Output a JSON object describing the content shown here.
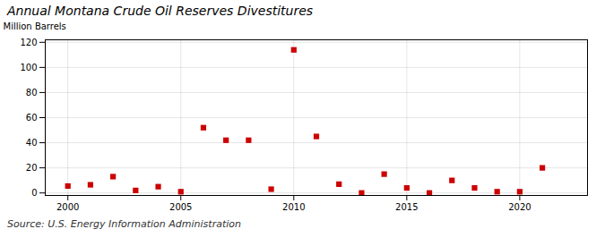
{
  "chart_data": {
    "type": "scatter",
    "title": "Annual Montana Crude Oil Reserves Divestitures",
    "ylabel": "Million Barrels",
    "annotations": [
      "Source: U.S. Energy Information Administration"
    ],
    "x": [
      2000,
      2001,
      2002,
      2003,
      2004,
      2005,
      2006,
      2007,
      2008,
      2009,
      2010,
      2011,
      2012,
      2013,
      2014,
      2015,
      2016,
      2017,
      2018,
      2019,
      2020,
      2021
    ],
    "values": [
      5.5,
      6.5,
      13,
      2,
      5,
      1,
      52,
      42,
      42,
      3,
      114,
      45,
      7,
      0,
      15,
      4,
      0,
      10,
      4,
      1,
      1,
      20
    ],
    "color": "#cc0000",
    "marker": "square",
    "xlim": [
      1999,
      2023
    ],
    "xticks": [
      2000,
      2005,
      2010,
      2015,
      2020
    ],
    "ylim": [
      -2,
      122
    ],
    "yticks": [
      0,
      20,
      40,
      60,
      80,
      100,
      120
    ],
    "grid": true
  }
}
